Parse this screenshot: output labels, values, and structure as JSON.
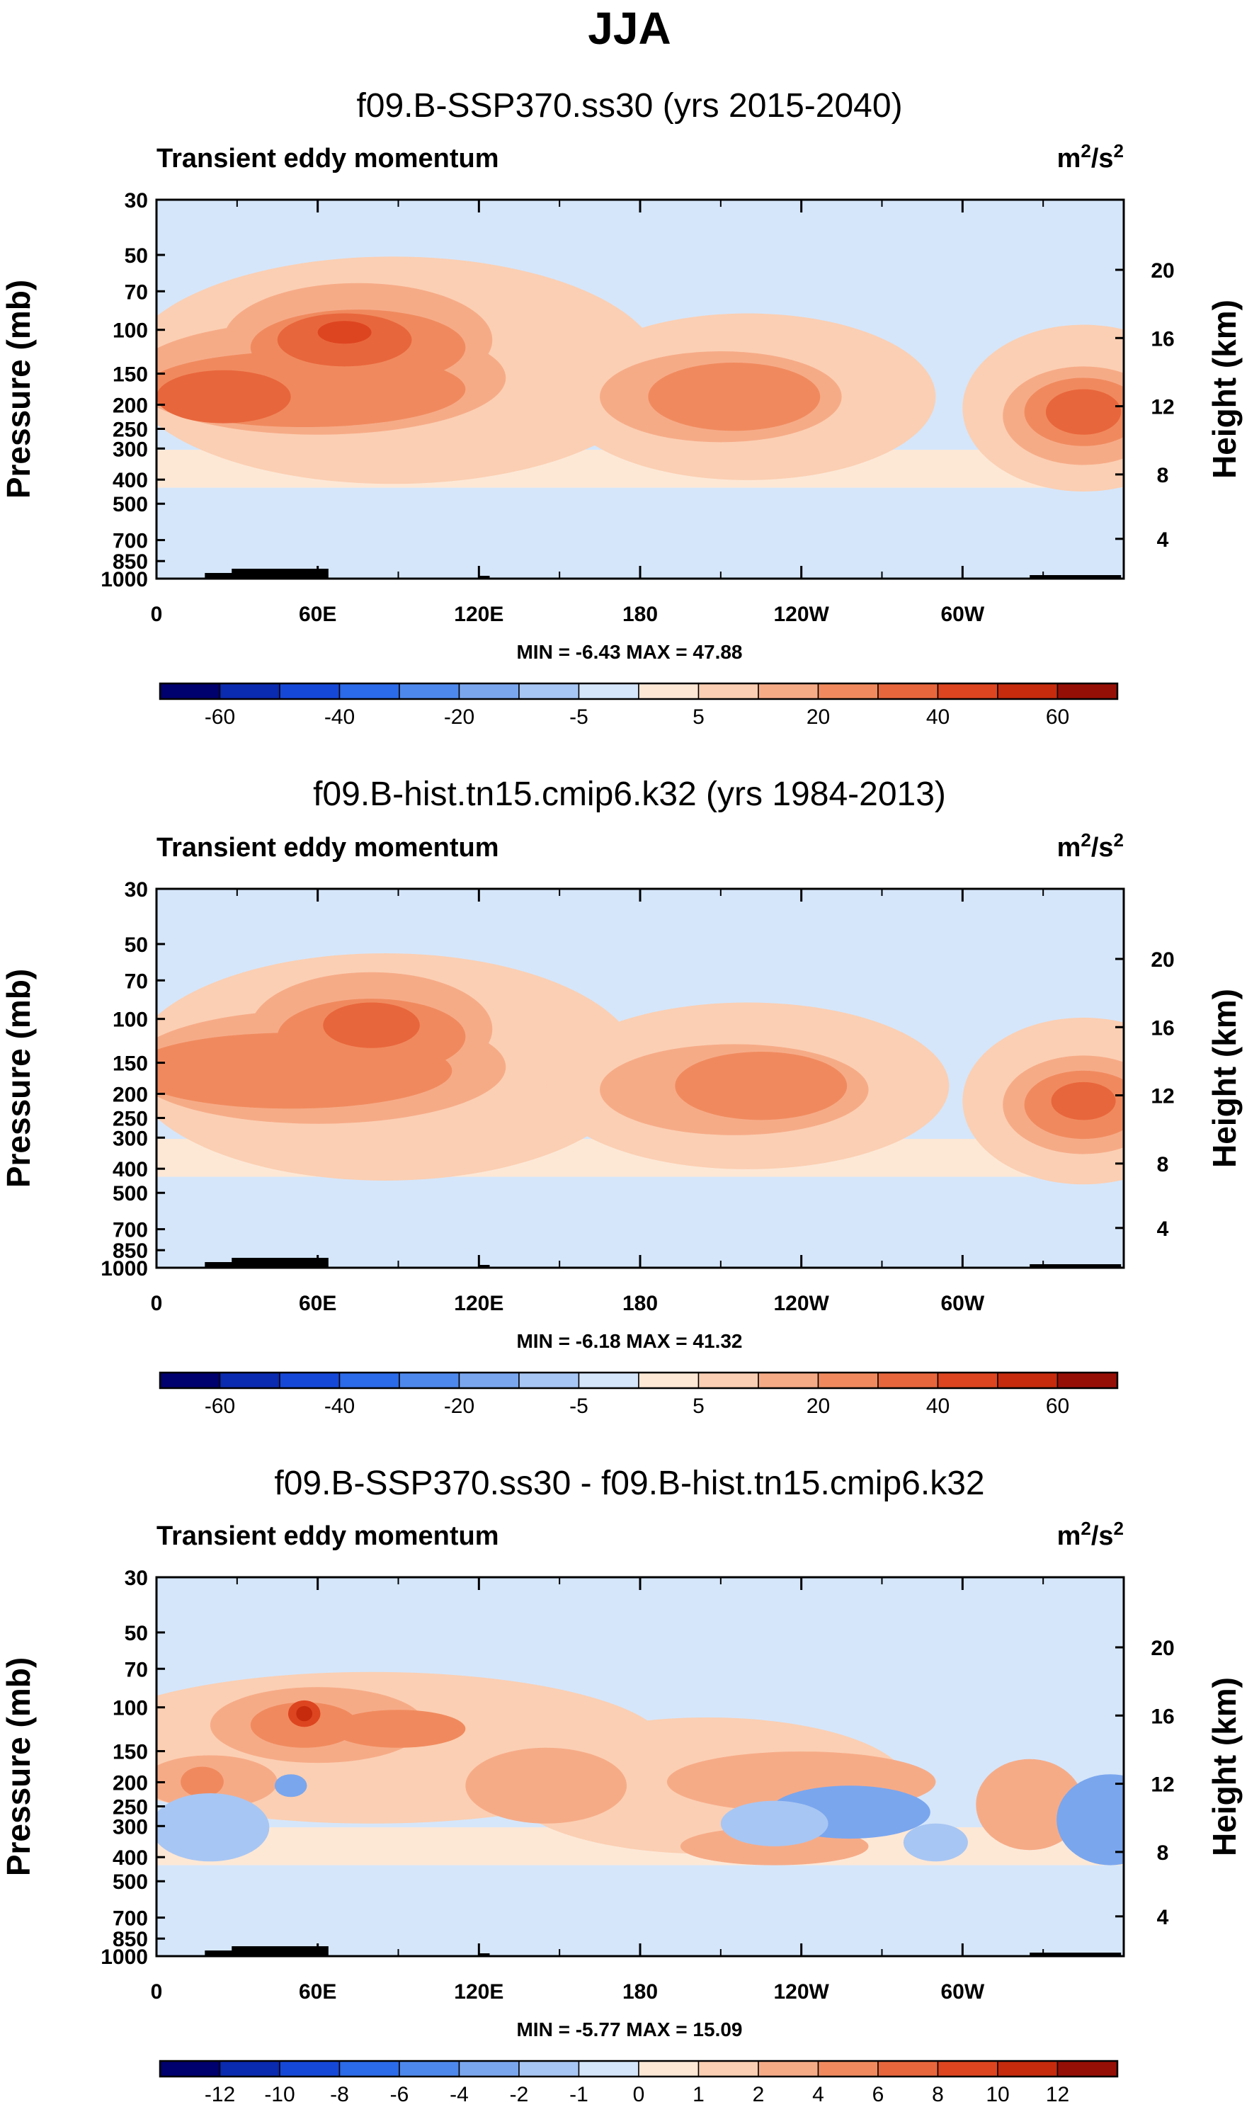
{
  "figure": {
    "title": "JJA"
  },
  "chart_data": [
    {
      "type": "heatmap",
      "title": "f09.B-SSP370.ss30 (yrs 2015-2040)",
      "subtitle": "Transient eddy momentum",
      "units": "m²/s²",
      "units_base": "m",
      "units_sup": "2",
      "units_mid": "/s",
      "units_sup2": "2",
      "ylabel": "Pressure (mb)",
      "y2label": "Height (km)",
      "xticks": [
        "0",
        "60E",
        "120E",
        "180",
        "120W",
        "60W"
      ],
      "yticks": [
        "30",
        "50",
        "70",
        "100",
        "150",
        "200",
        "250",
        "300",
        "400",
        "500",
        "700",
        "850",
        "1000"
      ],
      "y2ticks": [
        "20",
        "16",
        "12",
        "8",
        "4"
      ],
      "ylim": [
        1000,
        30
      ],
      "xlim": [
        0,
        360
      ],
      "stats": "MIN = -6.43   MAX = 47.88",
      "colorbar_labels": [
        "-60",
        "-40",
        "-20",
        "-5",
        "5",
        "20",
        "40",
        "60"
      ],
      "colorbar_levels": [
        -70,
        -60,
        -50,
        -40,
        -30,
        -20,
        -10,
        -5,
        0,
        5,
        10,
        20,
        30,
        40,
        50,
        60,
        70
      ],
      "max_value": 47.88,
      "min_value": -6.43
    },
    {
      "type": "heatmap",
      "title": "f09.B-hist.tn15.cmip6.k32 (yrs 1984-2013)",
      "subtitle": "Transient eddy momentum",
      "units": "m²/s²",
      "units_base": "m",
      "units_sup": "2",
      "units_mid": "/s",
      "units_sup2": "2",
      "ylabel": "Pressure (mb)",
      "y2label": "Height (km)",
      "xticks": [
        "0",
        "60E",
        "120E",
        "180",
        "120W",
        "60W"
      ],
      "yticks": [
        "30",
        "50",
        "70",
        "100",
        "150",
        "200",
        "250",
        "300",
        "400",
        "500",
        "700",
        "850",
        "1000"
      ],
      "y2ticks": [
        "20",
        "16",
        "12",
        "8",
        "4"
      ],
      "ylim": [
        1000,
        30
      ],
      "xlim": [
        0,
        360
      ],
      "stats": "MIN = -6.18   MAX = 41.32",
      "colorbar_labels": [
        "-60",
        "-40",
        "-20",
        "-5",
        "5",
        "20",
        "40",
        "60"
      ],
      "colorbar_levels": [
        -70,
        -60,
        -50,
        -40,
        -30,
        -20,
        -10,
        -5,
        0,
        5,
        10,
        20,
        30,
        40,
        50,
        60,
        70
      ],
      "max_value": 41.32,
      "min_value": -6.18
    },
    {
      "type": "heatmap",
      "title": "f09.B-SSP370.ss30 - f09.B-hist.tn15.cmip6.k32",
      "subtitle": "Transient eddy momentum",
      "units": "m²/s²",
      "units_base": "m",
      "units_sup": "2",
      "units_mid": "/s",
      "units_sup2": "2",
      "ylabel": "Pressure (mb)",
      "y2label": "Height (km)",
      "xticks": [
        "0",
        "60E",
        "120E",
        "180",
        "120W",
        "60W"
      ],
      "yticks": [
        "30",
        "50",
        "70",
        "100",
        "150",
        "200",
        "250",
        "300",
        "400",
        "500",
        "700",
        "850",
        "1000"
      ],
      "y2ticks": [
        "20",
        "16",
        "12",
        "8",
        "4"
      ],
      "ylim": [
        1000,
        30
      ],
      "xlim": [
        0,
        360
      ],
      "stats": "MIN = -5.77   MAX = 15.09",
      "colorbar_labels": [
        "-12",
        "-10",
        "-8",
        "-6",
        "-4",
        "-2",
        "-1",
        "0",
        "1",
        "2",
        "4",
        "6",
        "8",
        "10",
        "12"
      ],
      "colorbar_levels": [
        -14,
        -12,
        -10,
        -8,
        -6,
        -4,
        -2,
        -1,
        0,
        1,
        2,
        4,
        6,
        8,
        10,
        12,
        14
      ],
      "max_value": 15.09,
      "min_value": -5.77
    }
  ],
  "colors": {
    "palette": [
      "#00006e",
      "#0a2ab0",
      "#1648d8",
      "#2b6ae8",
      "#4d88ec",
      "#7aa6ee",
      "#a8c6f3",
      "#d5e6fa",
      "#fde8d6",
      "#fbcfb3",
      "#f6ab87",
      "#f08a5e",
      "#e8663c",
      "#dd4520",
      "#c52b0c",
      "#960f06"
    ],
    "terrain": "#000000"
  }
}
